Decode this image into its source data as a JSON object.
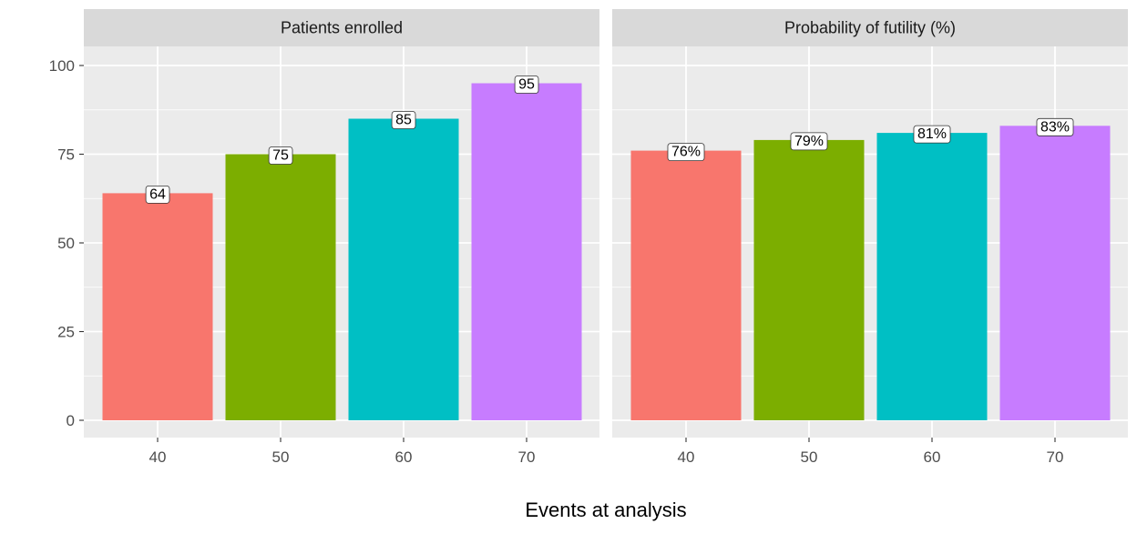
{
  "chart_data": {
    "type": "bar",
    "xlabel": "Events at analysis",
    "ylabel": "",
    "ylim": [
      0,
      110
    ],
    "yticks": [
      0,
      25,
      50,
      75,
      100
    ],
    "categories": [
      "40",
      "50",
      "60",
      "70"
    ],
    "colors": [
      "#F8766D",
      "#7CAE00",
      "#00BFC4",
      "#C77CFF"
    ],
    "panels": [
      {
        "title": "Patients enrolled",
        "values": [
          64,
          75,
          85,
          95
        ],
        "labels": [
          "64",
          "75",
          "85",
          "95"
        ]
      },
      {
        "title": "Probability of futility (%)",
        "values": [
          76,
          79,
          81,
          83
        ],
        "labels": [
          "76%",
          "79%",
          "81%",
          "83%"
        ]
      }
    ],
    "grid": true,
    "legend": "none"
  }
}
